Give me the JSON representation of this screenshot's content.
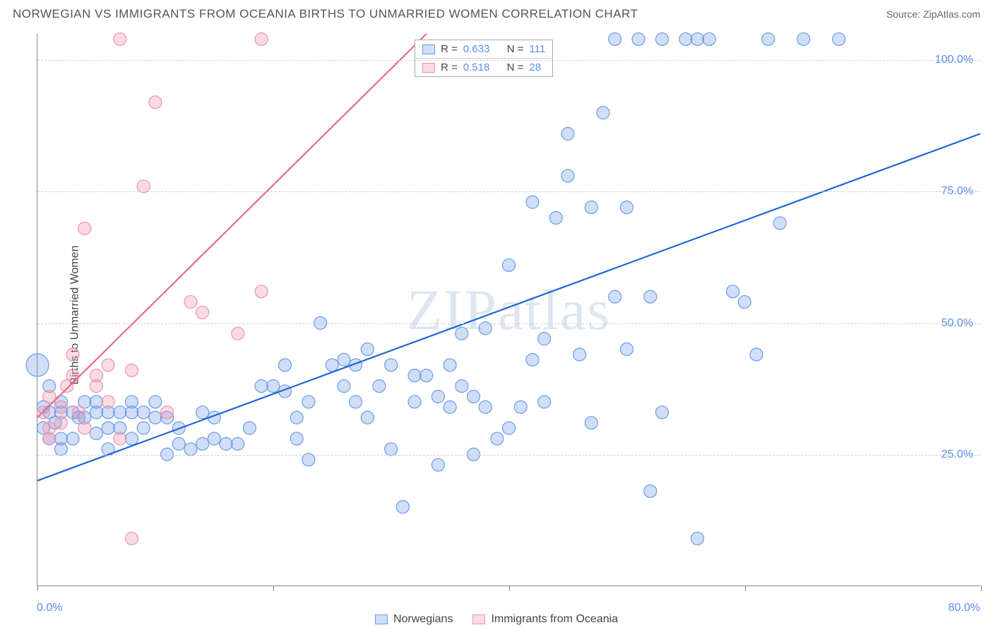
{
  "header": {
    "title": "NORWEGIAN VS IMMIGRANTS FROM OCEANIA BIRTHS TO UNMARRIED WOMEN CORRELATION CHART",
    "source": "Source: ZipAtlas.com"
  },
  "chart": {
    "type": "scatter",
    "ylabel": "Births to Unmarried Women",
    "watermark": "ZIPatlas",
    "xlim": [
      0,
      80
    ],
    "ylim": [
      0,
      105
    ],
    "x_ticks": [
      0,
      20,
      40,
      60,
      80
    ],
    "x_tick_labels": [
      "0.0%",
      "",
      "",
      "",
      "80.0%"
    ],
    "y_ticks": [
      25,
      50,
      75,
      100
    ],
    "y_tick_labels": [
      "25.0%",
      "50.0%",
      "75.0%",
      "100.0%"
    ],
    "grid_color": "#d0d0d0",
    "background_color": "#ffffff",
    "axis_color": "#888888",
    "tick_label_color": "#5b8def",
    "series": [
      {
        "name": "Norwegians",
        "marker_fill": "rgba(120,160,230,0.35)",
        "marker_stroke": "#6a9be8",
        "marker_r": 9,
        "line_color": "#1f66d6",
        "line_width": 2.2,
        "trend": {
          "x1": 0,
          "y1": 20,
          "x2": 80,
          "y2": 86
        },
        "R": "0.633",
        "N": "111",
        "points": [
          [
            0,
            42,
            16
          ],
          [
            1,
            33,
            9
          ],
          [
            1,
            38,
            9
          ],
          [
            0.5,
            34,
            9
          ],
          [
            0.5,
            30,
            9
          ],
          [
            1,
            28,
            9
          ],
          [
            1.5,
            31,
            9
          ],
          [
            2,
            33,
            9
          ],
          [
            2,
            35,
            9
          ],
          [
            2,
            28,
            9
          ],
          [
            2,
            26,
            9
          ],
          [
            3,
            33,
            9
          ],
          [
            3,
            28,
            9
          ],
          [
            3.5,
            32,
            9
          ],
          [
            4,
            32,
            9
          ],
          [
            4,
            35,
            9
          ],
          [
            5,
            33,
            9
          ],
          [
            5,
            35,
            9
          ],
          [
            5,
            29,
            9
          ],
          [
            6,
            33,
            9
          ],
          [
            6,
            30,
            9
          ],
          [
            6,
            26,
            9
          ],
          [
            7,
            30,
            9
          ],
          [
            7,
            33,
            9
          ],
          [
            8,
            33,
            9
          ],
          [
            8,
            35,
            9
          ],
          [
            8,
            28,
            9
          ],
          [
            9,
            33,
            9
          ],
          [
            9,
            30,
            9
          ],
          [
            10,
            35,
            9
          ],
          [
            10,
            32,
            9
          ],
          [
            11,
            25,
            9
          ],
          [
            11,
            32,
            9
          ],
          [
            12,
            30,
            9
          ],
          [
            12,
            27,
            9
          ],
          [
            13,
            26,
            9
          ],
          [
            14,
            33,
            9
          ],
          [
            14,
            27,
            9
          ],
          [
            15,
            28,
            9
          ],
          [
            15,
            32,
            9
          ],
          [
            16,
            27,
            9
          ],
          [
            17,
            27,
            9
          ],
          [
            18,
            30,
            9
          ],
          [
            19,
            38,
            9
          ],
          [
            20,
            38,
            9
          ],
          [
            21,
            42,
            9
          ],
          [
            21,
            37,
            9
          ],
          [
            22,
            32,
            9
          ],
          [
            22,
            28,
            9
          ],
          [
            23,
            35,
            9
          ],
          [
            23,
            24,
            9
          ],
          [
            24,
            50,
            9
          ],
          [
            25,
            42,
            9
          ],
          [
            26,
            38,
            9
          ],
          [
            26,
            43,
            9
          ],
          [
            27,
            42,
            9
          ],
          [
            27,
            35,
            9
          ],
          [
            28,
            45,
            9
          ],
          [
            28,
            32,
            9
          ],
          [
            29,
            38,
            9
          ],
          [
            30,
            42,
            9
          ],
          [
            30,
            26,
            9
          ],
          [
            31,
            15,
            9
          ],
          [
            32,
            40,
            9
          ],
          [
            32,
            35,
            9
          ],
          [
            33,
            40,
            9
          ],
          [
            34,
            23,
            9
          ],
          [
            34,
            36,
            9
          ],
          [
            35,
            42,
            9
          ],
          [
            35,
            34,
            9
          ],
          [
            36,
            48,
            9
          ],
          [
            36,
            38,
            9
          ],
          [
            37,
            25,
            9
          ],
          [
            37,
            36,
            9
          ],
          [
            38,
            49,
            9
          ],
          [
            38,
            34,
            9
          ],
          [
            39,
            28,
            9
          ],
          [
            40,
            61,
            9
          ],
          [
            40,
            30,
            9
          ],
          [
            41,
            34,
            9
          ],
          [
            42,
            43,
            9
          ],
          [
            42,
            73,
            9
          ],
          [
            43,
            35,
            9
          ],
          [
            43,
            47,
            9
          ],
          [
            44,
            70,
            9
          ],
          [
            45,
            78,
            9
          ],
          [
            45,
            86,
            9
          ],
          [
            46,
            44,
            9
          ],
          [
            47,
            31,
            9
          ],
          [
            47,
            72,
            9
          ],
          [
            48,
            90,
            9
          ],
          [
            49,
            55,
            9
          ],
          [
            49,
            104,
            9
          ],
          [
            50,
            45,
            9
          ],
          [
            50,
            72,
            9
          ],
          [
            51,
            104,
            9
          ],
          [
            52,
            55,
            9
          ],
          [
            52,
            18,
            9
          ],
          [
            53,
            104,
            9
          ],
          [
            53,
            33,
            9
          ],
          [
            55,
            104,
            9
          ],
          [
            56,
            104,
            9
          ],
          [
            57,
            104,
            9
          ],
          [
            59,
            56,
            9
          ],
          [
            60,
            54,
            9
          ],
          [
            61,
            44,
            9
          ],
          [
            62,
            104,
            9
          ],
          [
            63,
            69,
            9
          ],
          [
            65,
            104,
            9
          ],
          [
            68,
            104,
            9
          ],
          [
            56,
            9,
            9
          ]
        ]
      },
      {
        "name": "Immigrants from Oceania",
        "marker_fill": "rgba(240,150,175,0.35)",
        "marker_stroke": "#ed94ab",
        "marker_r": 9,
        "line_color": "#e86a8a",
        "line_width": 2.2,
        "trend": {
          "x1": 0,
          "y1": 32,
          "x2": 33,
          "y2": 105
        },
        "R": "0.518",
        "N": "28",
        "points": [
          [
            0.5,
            33,
            9
          ],
          [
            1,
            30,
            9
          ],
          [
            1,
            36,
            9
          ],
          [
            1,
            28,
            9
          ],
          [
            2,
            34,
            9
          ],
          [
            2,
            31,
            9
          ],
          [
            2.5,
            38,
            9
          ],
          [
            3,
            40,
            9
          ],
          [
            3,
            44,
            9
          ],
          [
            3.5,
            33,
            9
          ],
          [
            4,
            30,
            9
          ],
          [
            4,
            68,
            9
          ],
          [
            5,
            40,
            9
          ],
          [
            5,
            38,
            9
          ],
          [
            6,
            42,
            9
          ],
          [
            6,
            35,
            9
          ],
          [
            7,
            104,
            9
          ],
          [
            7,
            28,
            9
          ],
          [
            8,
            41,
            9
          ],
          [
            8,
            9,
            9
          ],
          [
            9,
            76,
            9
          ],
          [
            10,
            92,
            9
          ],
          [
            11,
            33,
            9
          ],
          [
            13,
            54,
            9
          ],
          [
            14,
            52,
            9
          ],
          [
            17,
            48,
            9
          ],
          [
            19,
            104,
            9
          ],
          [
            19,
            56,
            9
          ]
        ]
      }
    ],
    "legend": {
      "items": [
        "Norwegians",
        "Immigrants from Oceania"
      ]
    },
    "stats_box": {
      "left_pct": 40
    }
  }
}
